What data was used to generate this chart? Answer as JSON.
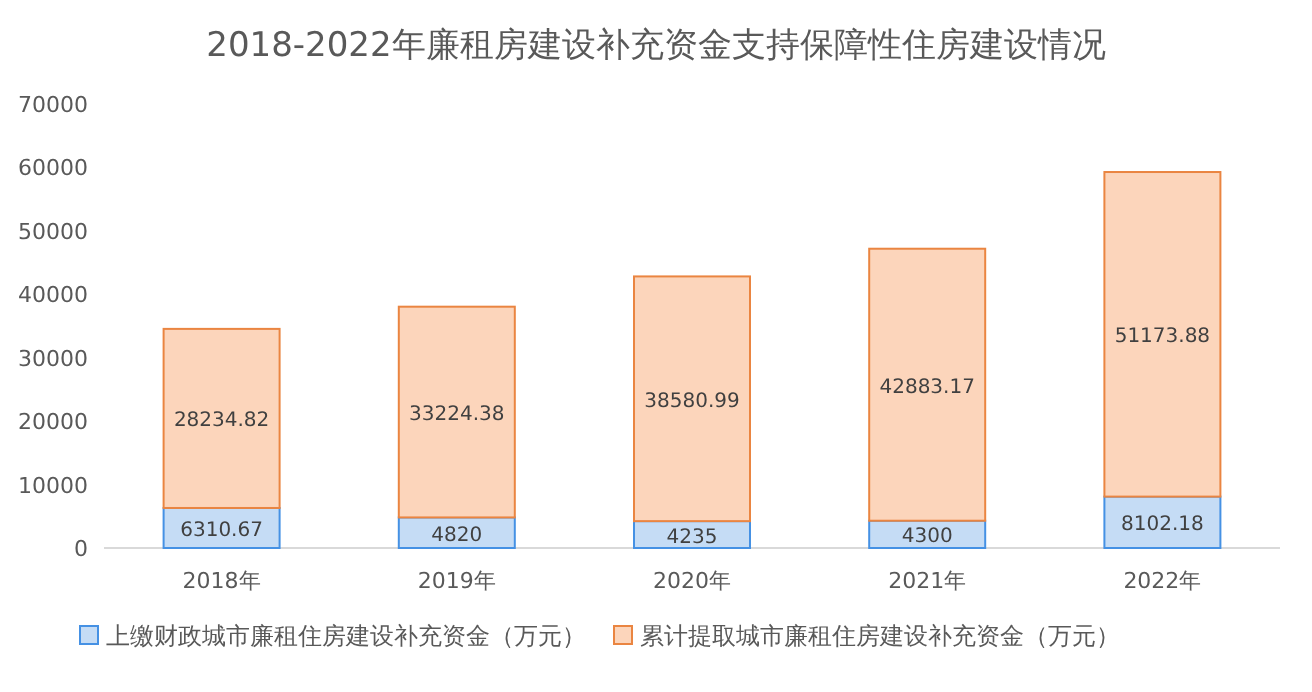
{
  "chart_data": {
    "type": "bar",
    "stacked": true,
    "title": "2018-2022年廉租房建设补充资金支持保障性住房建设情况",
    "categories": [
      "2018年",
      "2019年",
      "2020年",
      "2021年",
      "2022年"
    ],
    "series": [
      {
        "name": "上缴财政城市廉租住房建设补充资金（万元）",
        "color": "#c5dcf5",
        "values": [
          6310.67,
          4820,
          4235,
          4300,
          8102.18
        ]
      },
      {
        "name": "累计提取城市廉租住房建设补充资金（万元）",
        "color": "#fcd5bb",
        "values": [
          28234.82,
          33224.38,
          38580.99,
          42883.17,
          51173.88
        ]
      }
    ],
    "ylim": [
      0,
      70000
    ],
    "yticks": [
      0,
      10000,
      20000,
      30000,
      40000,
      50000,
      60000,
      70000
    ],
    "data_labels": true,
    "legend": "bottom",
    "grid": false
  }
}
